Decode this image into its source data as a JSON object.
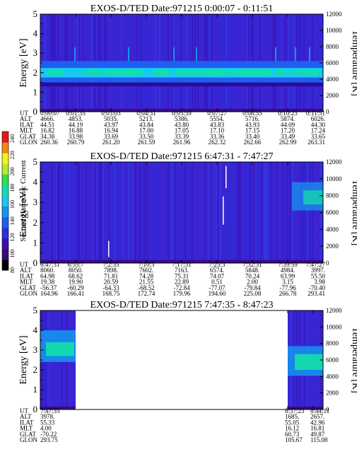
{
  "colorbar": {
    "label": "Second Harmonic Current",
    "ticks": [
      "240",
      "220",
      "200",
      "180",
      "160",
      "140",
      "120",
      "100",
      "80"
    ]
  },
  "chart_data": [
    {
      "type": "heatmap",
      "title": "EXOS-D/TED   Date:971215   0:00:07 - 0:11:51",
      "ylabel": "Energy [eV]",
      "y2label": "Temperature [K]",
      "ylim": [
        0,
        5
      ],
      "yticks": [
        "0",
        "1",
        "2",
        "3",
        "4",
        "5"
      ],
      "y2lim": [
        0,
        12000
      ],
      "y2ticks": [
        "0",
        "2000",
        "4000",
        "6000",
        "8000",
        "10000",
        "12000"
      ],
      "data_extent": [
        0,
        1
      ],
      "bands": [
        {
          "from": 1.5,
          "to": 1.75,
          "level": 4
        },
        {
          "from": 1.75,
          "to": 2.25,
          "level": 6
        },
        {
          "from": 2.25,
          "to": 2.6,
          "level": 4
        }
      ],
      "tick_labels": {
        "UT": [
          "0:00:07",
          "0:01:35",
          "0:03:03",
          "0:04:31",
          "0:05:59",
          "0:07:27",
          "0:08:55",
          "0:10:23",
          "0:11:51"
        ],
        "ALT": [
          "4666.",
          "4853.",
          "5035.",
          "5213.",
          "5386.",
          "5554.",
          "5716.",
          "5874.",
          "6026."
        ],
        "ILAT": [
          "44.51",
          "44.19",
          "43.97",
          "43.84",
          "43.80",
          "43.83",
          "43.93",
          "44.09",
          "44.30"
        ],
        "MLT": [
          "16.82",
          "16.88",
          "16.94",
          "17.00",
          "17.05",
          "17.10",
          "17.15",
          "17.20",
          "17.24"
        ],
        "GLAT": [
          "34.38",
          "33.98",
          "33.69",
          "33.50",
          "33.39",
          "33.36",
          "33.40",
          "33.49",
          "33.65"
        ],
        "GLON": [
          "260.36",
          "260.79",
          "261.20",
          "261.59",
          "261.96",
          "262.32",
          "262.66",
          "262.99",
          "263.31"
        ]
      }
    },
    {
      "type": "heatmap",
      "title": "EXOS-D/TED   Date:971215   6:47:31 - 7:47:27",
      "ylabel": "Energy [eV]",
      "y2label": "Temperature [K]",
      "ylim": [
        0,
        5
      ],
      "yticks": [
        "0",
        "1",
        "2",
        "3",
        "4",
        "5"
      ],
      "y2lim": [
        0,
        12000
      ],
      "y2ticks": [
        "0",
        "2000",
        "4000",
        "6000",
        "8000",
        "10000",
        "12000"
      ],
      "data_extent": [
        0,
        1
      ],
      "tick_labels": {
        "UT": [
          "6:47:31",
          "6:55:7",
          "7:2:35",
          "7:10:3",
          "7:17:31",
          "7:25:3",
          "7:32:31",
          "7:39:59",
          "7:47:27"
        ],
        "ALT": [
          "8060.",
          "8050.",
          "7898.",
          "7602.",
          "7163.",
          "6574.",
          "5848.",
          "4984.",
          "3997."
        ],
        "ILAT": [
          "64.98",
          "68.62",
          "71.81",
          "74.28",
          "75.31",
          "74.07",
          "70.24",
          "63.99",
          "55.50"
        ],
        "MLT": [
          "19.38",
          "19.90",
          "20.59",
          "21.55",
          "22.89",
          "0.51",
          "2.00",
          "3.15",
          "3.98"
        ],
        "GLAT": [
          "-56.37",
          "-60.29",
          "-64.33",
          "-68.52",
          "-72.84",
          "-77.07",
          "-79.84",
          "-77.96",
          "-70.40"
        ],
        "GLON": [
          "164.96",
          "166.41",
          "168.75",
          "172.74",
          "179.96",
          "194.60",
          "225.08",
          "266.78",
          "293.41"
        ]
      }
    },
    {
      "type": "heatmap",
      "title": "EXOS-D/TED   Date:971215   7:47:35 - 8:47:23",
      "ylabel": "Energy [eV]",
      "y2label": "Temperature [K]",
      "ylim": [
        0,
        5
      ],
      "yticks": [
        "0",
        "1",
        "2",
        "3",
        "4",
        "5"
      ],
      "y2lim": [
        0,
        12000
      ],
      "y2ticks": [
        "0",
        "2000",
        "4000",
        "6000",
        "8000",
        "10000",
        "12000"
      ],
      "data_extent": [
        [
          0,
          0.125
        ],
        [
          0.875,
          1
        ]
      ],
      "tick_labels": {
        "UT": [
          "7:47:35",
          "8:37:23",
          "8:44:11"
        ],
        "ALT": [
          "3978.",
          "1685.",
          "2657."
        ],
        "ILAT": [
          "55.33",
          "55.05",
          "42.96"
        ],
        "MLT": [
          "4.00",
          "16.12",
          "16.81"
        ],
        "GLAT": [
          "-70.22",
          "60.73",
          "49.87"
        ],
        "GLON": [
          "293.75",
          "105.67",
          "115.08"
        ]
      }
    }
  ]
}
